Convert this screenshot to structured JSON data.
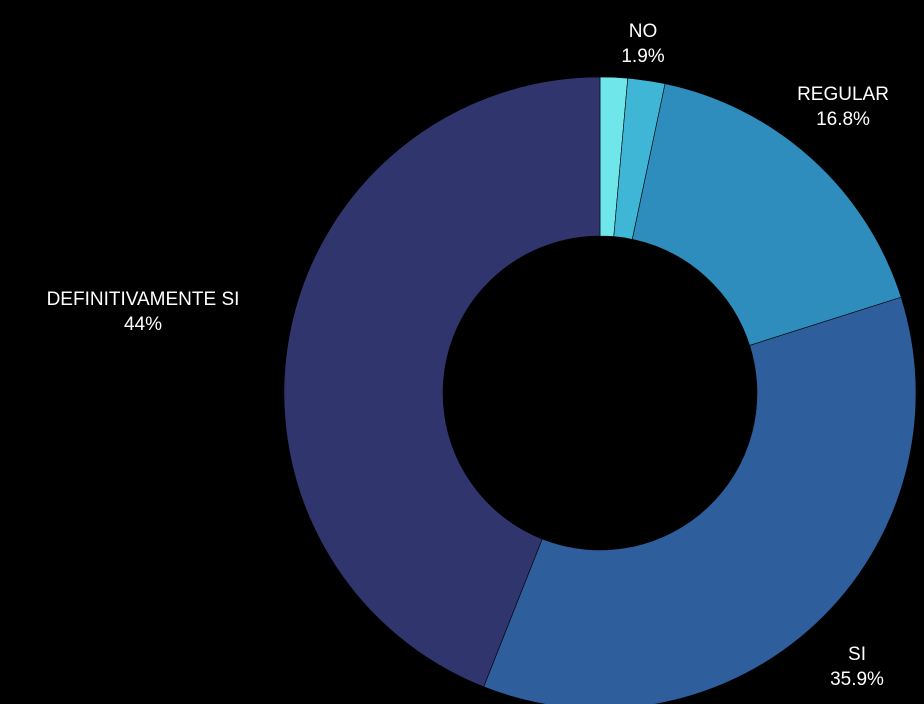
{
  "chart_data": {
    "type": "pie",
    "donut": true,
    "title": "",
    "slices": [
      {
        "label": "",
        "value": 1.4,
        "value_label": "",
        "color": "#6fe6ea"
      },
      {
        "label": "NO",
        "value": 1.9,
        "value_label": "1.9%",
        "color": "#40b6d6"
      },
      {
        "label": "REGULAR",
        "value": 16.8,
        "value_label": "16.8%",
        "color": "#2f8dbd"
      },
      {
        "label": "SI",
        "value": 35.9,
        "value_label": "35.9%",
        "color": "#2e5e9b"
      },
      {
        "label": "DEFINITIVAMENTE SI",
        "value": 44,
        "value_label": "44%",
        "color": "#31356d"
      }
    ],
    "legend": "none",
    "label_placement": "outside"
  }
}
